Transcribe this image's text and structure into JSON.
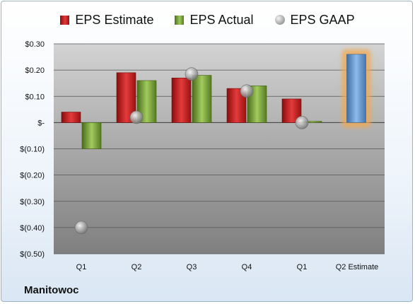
{
  "company": "Manitowoc",
  "legend": {
    "estimate": "EPS Estimate",
    "actual": "EPS Actual",
    "gaap": "EPS GAAP"
  },
  "colors": {
    "estimate": "#d42020",
    "actual": "#8cb845",
    "gaap": "#a8a8a8",
    "projection": "#6f9fd6",
    "projection_glow": "#f3a84e"
  },
  "chart_data": {
    "type": "bar",
    "categories": [
      "Q1",
      "Q2",
      "Q3",
      "Q4",
      "Q1",
      "Q2 Estimate"
    ],
    "series": [
      {
        "name": "EPS Estimate",
        "values": [
          0.04,
          0.19,
          0.17,
          0.13,
          0.09,
          0.26
        ]
      },
      {
        "name": "EPS Actual",
        "values": [
          -0.1,
          0.16,
          0.18,
          0.14,
          0.005,
          null
        ]
      },
      {
        "name": "EPS GAAP",
        "kind": "scatter",
        "values": [
          -0.4,
          0.02,
          0.185,
          0.12,
          0.0,
          null
        ]
      }
    ],
    "highlight": {
      "category": "Q2 Estimate",
      "series": "EPS Estimate"
    },
    "ylim": [
      -0.5,
      0.3
    ],
    "yticks": [
      0.3,
      0.2,
      0.1,
      0.0,
      -0.1,
      -0.2,
      -0.3,
      -0.4,
      -0.5
    ],
    "ytick_labels": [
      "$0.30",
      "$0.20",
      "$0.10",
      "$-",
      "$(0.10)",
      "$(0.20)",
      "$(0.30)",
      "$(0.40)",
      "$(0.50)"
    ],
    "grid": true,
    "legend_position": "top"
  }
}
